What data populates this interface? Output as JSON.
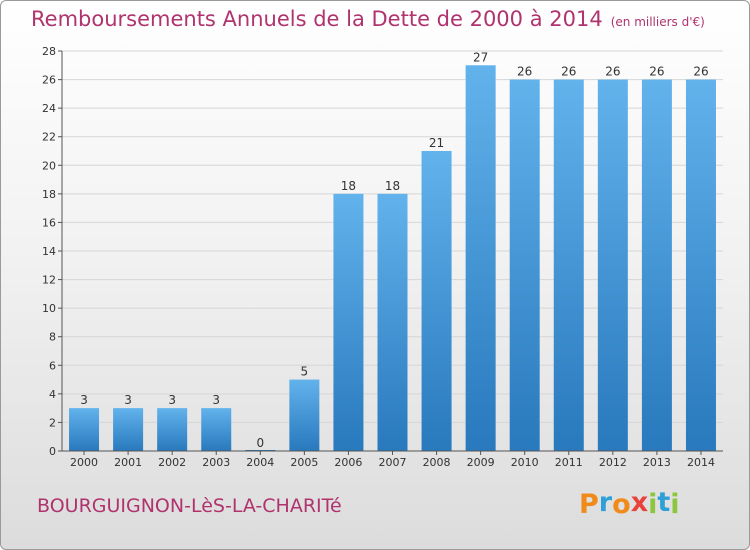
{
  "title": "Remboursements Annuels de la Dette de 2000 à 2014",
  "unit": "(en milliers d'€)",
  "commune": "BOURGUIGNON-LèS-LA-CHARITé",
  "logo": {
    "text": "Proxiti",
    "letter_colors": [
      "#f08a1a",
      "#2f9fd8",
      "#f08a1a",
      "#e8423a",
      "#8cc63f",
      "#2f9fd8",
      "#8cc63f"
    ]
  },
  "colors": {
    "title": "#b0336e",
    "bar_top": "#62b2ec",
    "bar_bottom": "#2879bd",
    "grid": "#d6d6d6"
  },
  "chart_data": {
    "type": "bar",
    "categories": [
      "2000",
      "2001",
      "2002",
      "2003",
      "2004",
      "2005",
      "2006",
      "2007",
      "2008",
      "2009",
      "2010",
      "2011",
      "2012",
      "2013",
      "2014"
    ],
    "values": [
      3,
      3,
      3,
      3,
      0,
      5,
      18,
      18,
      21,
      27,
      26,
      26,
      26,
      26,
      26
    ],
    "title": "Remboursements Annuels de la Dette de 2000 à 2014",
    "xlabel": "",
    "ylabel": "",
    "ylim": [
      0,
      28
    ],
    "yticks": [
      0,
      2,
      4,
      6,
      8,
      10,
      12,
      14,
      16,
      18,
      20,
      22,
      24,
      26,
      28
    ],
    "grid": true,
    "data_labels": true
  }
}
